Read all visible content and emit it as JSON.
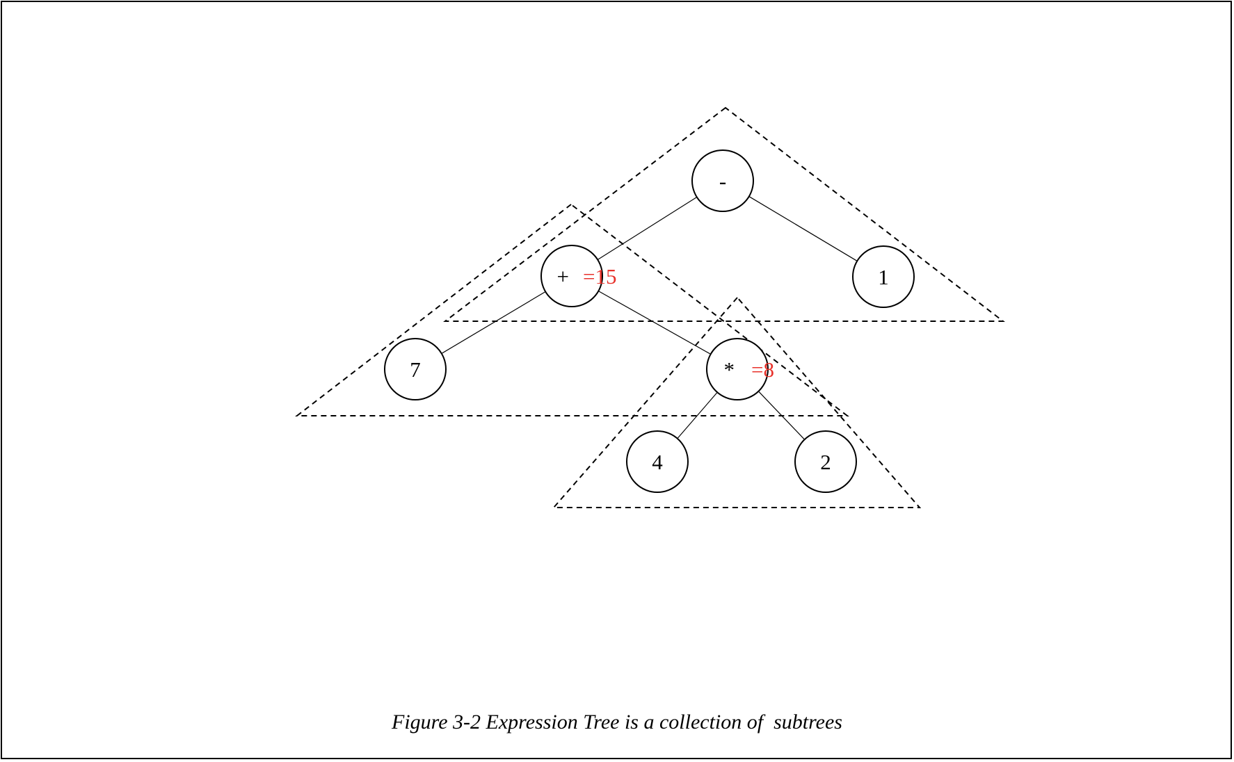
{
  "figure": {
    "caption": "Figure 3-2 Expression Tree is a collection of  subtrees"
  },
  "tree": {
    "nodes": [
      {
        "id": "minus",
        "label": "-"
      },
      {
        "id": "plus",
        "label": "+",
        "value_label": "=15"
      },
      {
        "id": "one",
        "label": "1"
      },
      {
        "id": "seven",
        "label": "7"
      },
      {
        "id": "times",
        "label": "*",
        "value_label": "=8"
      },
      {
        "id": "four",
        "label": "4"
      },
      {
        "id": "two",
        "label": "2"
      }
    ],
    "edges": [
      [
        "minus",
        "plus"
      ],
      [
        "minus",
        "one"
      ],
      [
        "plus",
        "seven"
      ],
      [
        "plus",
        "times"
      ],
      [
        "times",
        "four"
      ],
      [
        "times",
        "two"
      ]
    ],
    "subtrees": [
      "minus",
      "plus",
      "times"
    ]
  },
  "colors": {
    "value_label": "#e8322b",
    "line": "#000000"
  }
}
